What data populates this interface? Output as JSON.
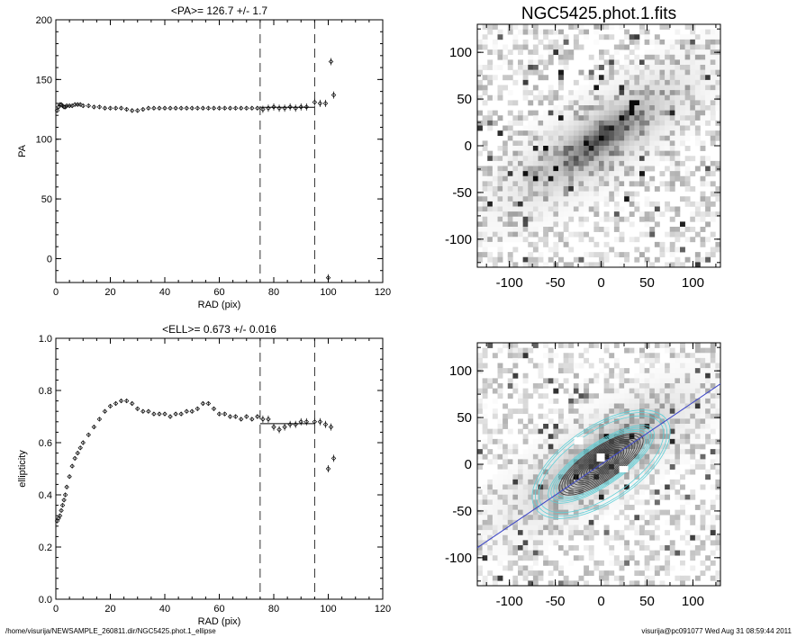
{
  "footer": {
    "left": "/home/visurija/NEWSAMPLE_260811.dir/NGC5425.phot.1_ellipse",
    "right": "visurija@pc091077  Wed Aug 31 08:59:44 2011"
  },
  "colors": {
    "axis": "#000000",
    "contour_outer": "#5fd0d8",
    "contour_inner": "#3a3a3a",
    "major_axis": "#3a44c8"
  },
  "chart_data": [
    {
      "type": "scatter",
      "title": "<PA>= 126.7 +/-   1.7",
      "xlabel": "RAD (pix)",
      "ylabel": "PA",
      "xlim": [
        0,
        120
      ],
      "ylim": [
        -20,
        200
      ],
      "xticks": [
        0,
        20,
        40,
        60,
        80,
        100,
        120
      ],
      "yticks": [
        0,
        50,
        100,
        150,
        200
      ],
      "vlines": [
        75,
        95
      ],
      "mean_line": {
        "x": [
          75,
          95
        ],
        "y": 126.7
      },
      "x": [
        0.5,
        1,
        1.5,
        2,
        2.5,
        3,
        3.5,
        4,
        5,
        6,
        7,
        8,
        9,
        10,
        12,
        14,
        16,
        18,
        20,
        22,
        24,
        26,
        28,
        30,
        32,
        34,
        36,
        38,
        40,
        42,
        44,
        46,
        48,
        50,
        52,
        54,
        56,
        58,
        60,
        62,
        64,
        66,
        68,
        70,
        72,
        74,
        76,
        78,
        80,
        82,
        84,
        86,
        88,
        90,
        92,
        95,
        97,
        99,
        100,
        101,
        102
      ],
      "y": [
        124,
        127,
        129,
        129,
        128,
        127,
        127,
        128,
        128,
        128,
        129,
        129,
        129,
        128,
        128,
        127,
        127,
        126,
        126,
        126,
        126,
        125,
        124,
        124,
        125,
        126,
        126,
        126,
        126,
        126,
        126,
        126,
        126,
        126,
        126,
        126,
        126,
        126,
        126,
        126,
        126,
        126,
        126,
        126,
        126,
        126,
        125,
        126,
        127,
        126,
        126,
        127,
        126,
        127,
        127,
        131,
        130,
        130,
        -16,
        165,
        137
      ]
    },
    {
      "type": "scatter",
      "title": "<ELL>= 0.673 +/-  0.016",
      "xlabel": "RAD (pix)",
      "ylabel": "ellipticity",
      "xlim": [
        0,
        120
      ],
      "ylim": [
        0.0,
        1.0
      ],
      "xticks": [
        0,
        20,
        40,
        60,
        80,
        100,
        120
      ],
      "yticks": [
        0.0,
        0.2,
        0.4,
        0.6,
        0.8,
        1.0
      ],
      "vlines": [
        75,
        95
      ],
      "mean_line": {
        "x": [
          75,
          95
        ],
        "y": 0.673
      },
      "x": [
        0.5,
        1,
        1.5,
        2,
        2.5,
        3,
        3.5,
        4,
        5,
        6,
        7,
        8,
        9,
        10,
        12,
        14,
        16,
        18,
        20,
        22,
        24,
        26,
        28,
        30,
        32,
        34,
        36,
        38,
        40,
        42,
        44,
        46,
        48,
        50,
        52,
        54,
        56,
        58,
        60,
        62,
        64,
        66,
        68,
        70,
        72,
        74,
        76,
        78,
        80,
        82,
        84,
        86,
        88,
        90,
        92,
        95,
        97,
        99,
        100,
        101,
        102
      ],
      "y": [
        0.3,
        0.31,
        0.32,
        0.34,
        0.36,
        0.38,
        0.4,
        0.43,
        0.47,
        0.51,
        0.54,
        0.56,
        0.58,
        0.6,
        0.63,
        0.66,
        0.69,
        0.72,
        0.74,
        0.75,
        0.76,
        0.76,
        0.75,
        0.73,
        0.72,
        0.72,
        0.71,
        0.71,
        0.71,
        0.7,
        0.71,
        0.71,
        0.72,
        0.72,
        0.73,
        0.75,
        0.75,
        0.73,
        0.71,
        0.71,
        0.7,
        0.7,
        0.69,
        0.7,
        0.69,
        0.7,
        0.69,
        0.69,
        0.66,
        0.65,
        0.66,
        0.67,
        0.67,
        0.68,
        0.68,
        0.68,
        0.68,
        0.67,
        0.5,
        0.66,
        0.54
      ]
    },
    {
      "type": "heatmap",
      "title": "NGC5425.phot.1.fits",
      "xlim": [
        -135,
        130
      ],
      "ylim": [
        -130,
        130
      ],
      "xticks": [
        -100,
        -50,
        0,
        50,
        100
      ],
      "yticks": [
        -100,
        -50,
        0,
        50,
        100
      ]
    },
    {
      "type": "heatmap",
      "title": "",
      "xlim": [
        -135,
        130
      ],
      "ylim": [
        -130,
        130
      ],
      "xticks": [
        -100,
        -50,
        0,
        50,
        100
      ],
      "yticks": [
        -100,
        -50,
        0,
        50,
        100
      ],
      "overlay": "ellipse isophotes with major-axis line, PA 126.7"
    }
  ]
}
